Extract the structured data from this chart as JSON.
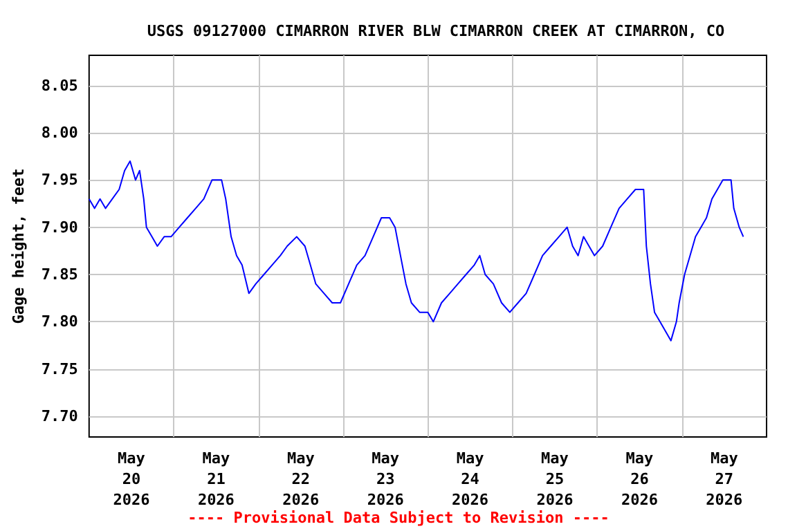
{
  "chart_data": {
    "type": "line",
    "title": "USGS 09127000 CIMARRON RIVER BLW CIMARRON CREEK AT CIMARRON, CO",
    "ylabel": "Gage height, feet",
    "annotations": [
      "---- Provisional Data Subject to Revision ----"
    ],
    "series": [
      {
        "color": "#0000ff",
        "x": [
          "2026-05-20T00:00",
          "2026-05-20T01:33",
          "2026-05-20T03:06",
          "2026-05-20T04:39",
          "2026-05-20T06:35",
          "2026-05-20T08:31",
          "2026-05-20T10:04",
          "2026-05-20T11:37",
          "2026-05-20T13:10",
          "2026-05-20T14:19",
          "2026-05-20T15:29",
          "2026-05-20T16:15",
          "2026-05-20T17:48",
          "2026-05-20T19:21",
          "2026-05-20T21:17",
          "2026-05-20T23:14",
          "2026-05-21T01:33",
          "2026-05-21T03:52",
          "2026-05-21T06:12",
          "2026-05-21T08:31",
          "2026-05-21T10:50",
          "2026-05-21T13:33",
          "2026-05-21T14:43",
          "2026-05-21T16:15",
          "2026-05-21T17:48",
          "2026-05-21T19:21",
          "2026-05-21T21:17",
          "2026-05-21T23:14",
          "2026-05-22T01:33",
          "2026-05-22T03:52",
          "2026-05-22T06:12",
          "2026-05-22T08:08",
          "2026-05-22T10:50",
          "2026-05-22T13:10",
          "2026-05-22T14:43",
          "2026-05-22T16:15",
          "2026-05-22T18:35",
          "2026-05-22T20:54",
          "2026-05-22T23:14",
          "2026-05-23T01:33",
          "2026-05-23T03:52",
          "2026-05-23T06:12",
          "2026-05-23T08:31",
          "2026-05-23T10:50",
          "2026-05-23T13:10",
          "2026-05-23T14:43",
          "2026-05-23T16:15",
          "2026-05-23T17:48",
          "2026-05-23T19:21",
          "2026-05-23T21:41",
          "2026-05-24T00:00",
          "2026-05-24T01:33",
          "2026-05-24T03:52",
          "2026-05-24T06:12",
          "2026-05-24T08:31",
          "2026-05-24T10:50",
          "2026-05-24T13:10",
          "2026-05-24T14:43",
          "2026-05-24T16:15",
          "2026-05-24T18:35",
          "2026-05-24T20:54",
          "2026-05-24T23:14",
          "2026-05-25T01:33",
          "2026-05-25T03:52",
          "2026-05-25T06:12",
          "2026-05-25T08:31",
          "2026-05-25T10:50",
          "2026-05-25T13:10",
          "2026-05-25T15:29",
          "2026-05-25T17:02",
          "2026-05-25T18:35",
          "2026-05-25T20:08",
          "2026-05-25T21:41",
          "2026-05-25T23:14",
          "2026-05-26T01:33",
          "2026-05-26T03:52",
          "2026-05-26T06:12",
          "2026-05-26T08:31",
          "2026-05-26T10:50",
          "2026-05-26T13:10",
          "2026-05-26T13:56",
          "2026-05-26T15:06",
          "2026-05-26T16:15",
          "2026-05-26T17:48",
          "2026-05-26T19:21",
          "2026-05-26T20:54",
          "2026-05-26T22:27",
          "2026-05-26T23:14",
          "2026-05-27T00:46",
          "2026-05-27T02:19",
          "2026-05-27T03:52",
          "2026-05-27T05:25",
          "2026-05-27T06:58",
          "2026-05-27T08:31",
          "2026-05-27T10:04",
          "2026-05-27T11:37",
          "2026-05-27T13:56",
          "2026-05-27T14:43",
          "2026-05-27T16:15",
          "2026-05-27T17:25"
        ],
        "values": [
          7.93,
          7.92,
          7.93,
          7.92,
          7.93,
          7.94,
          7.96,
          7.97,
          7.95,
          7.96,
          7.93,
          7.9,
          7.89,
          7.88,
          7.89,
          7.89,
          7.9,
          7.91,
          7.92,
          7.93,
          7.95,
          7.95,
          7.93,
          7.89,
          7.87,
          7.86,
          7.83,
          7.84,
          7.85,
          7.86,
          7.87,
          7.88,
          7.89,
          7.88,
          7.86,
          7.84,
          7.83,
          7.82,
          7.82,
          7.84,
          7.86,
          7.87,
          7.89,
          7.91,
          7.91,
          7.9,
          7.87,
          7.84,
          7.82,
          7.81,
          7.81,
          7.8,
          7.82,
          7.83,
          7.84,
          7.85,
          7.86,
          7.87,
          7.85,
          7.84,
          7.82,
          7.81,
          7.82,
          7.83,
          7.85,
          7.87,
          7.88,
          7.89,
          7.9,
          7.88,
          7.87,
          7.89,
          7.88,
          7.87,
          7.88,
          7.9,
          7.92,
          7.93,
          7.94,
          7.94,
          7.88,
          7.84,
          7.81,
          7.8,
          7.79,
          7.78,
          7.8,
          7.82,
          7.85,
          7.87,
          7.89,
          7.9,
          7.91,
          7.93,
          7.94,
          7.95,
          7.95,
          7.92,
          7.9,
          7.89
        ]
      }
    ],
    "xlim": [
      "2026-05-20T00:00",
      "2026-05-28T00:00"
    ],
    "xticks": [
      {
        "value": "2026-05-20T12:00",
        "label": "May\n20\n2026"
      },
      {
        "value": "2026-05-21T00:00",
        "label": null
      },
      {
        "value": "2026-05-21T12:00",
        "label": "May\n21\n2026"
      },
      {
        "value": "2026-05-22T00:00",
        "label": null
      },
      {
        "value": "2026-05-22T12:00",
        "label": "May\n22\n2026"
      },
      {
        "value": "2026-05-23T00:00",
        "label": null
      },
      {
        "value": "2026-05-23T12:00",
        "label": "May\n23\n2026"
      },
      {
        "value": "2026-05-24T00:00",
        "label": null
      },
      {
        "value": "2026-05-24T12:00",
        "label": "May\n24\n2026"
      },
      {
        "value": "2026-05-25T00:00",
        "label": null
      },
      {
        "value": "2026-05-25T12:00",
        "label": "May\n25\n2026"
      },
      {
        "value": "2026-05-26T00:00",
        "label": null
      },
      {
        "value": "2026-05-26T12:00",
        "label": "May\n26\n2026"
      },
      {
        "value": "2026-05-27T00:00",
        "label": null
      },
      {
        "value": "2026-05-27T12:00",
        "label": "May\n27\n2026"
      }
    ],
    "ylim": [
      7.678,
      8.082
    ],
    "yticks": [
      {
        "value": 7.7,
        "label": "7.70"
      },
      {
        "value": 7.75,
        "label": "7.75"
      },
      {
        "value": 7.8,
        "label": "7.80"
      },
      {
        "value": 7.85,
        "label": "7.85"
      },
      {
        "value": 7.9,
        "label": "7.90"
      },
      {
        "value": 7.95,
        "label": "7.95"
      },
      {
        "value": 8.0,
        "label": "8.00"
      },
      {
        "value": 8.05,
        "label": "8.05"
      }
    ],
    "grid": true,
    "marker": "none",
    "line_style": "solid"
  }
}
